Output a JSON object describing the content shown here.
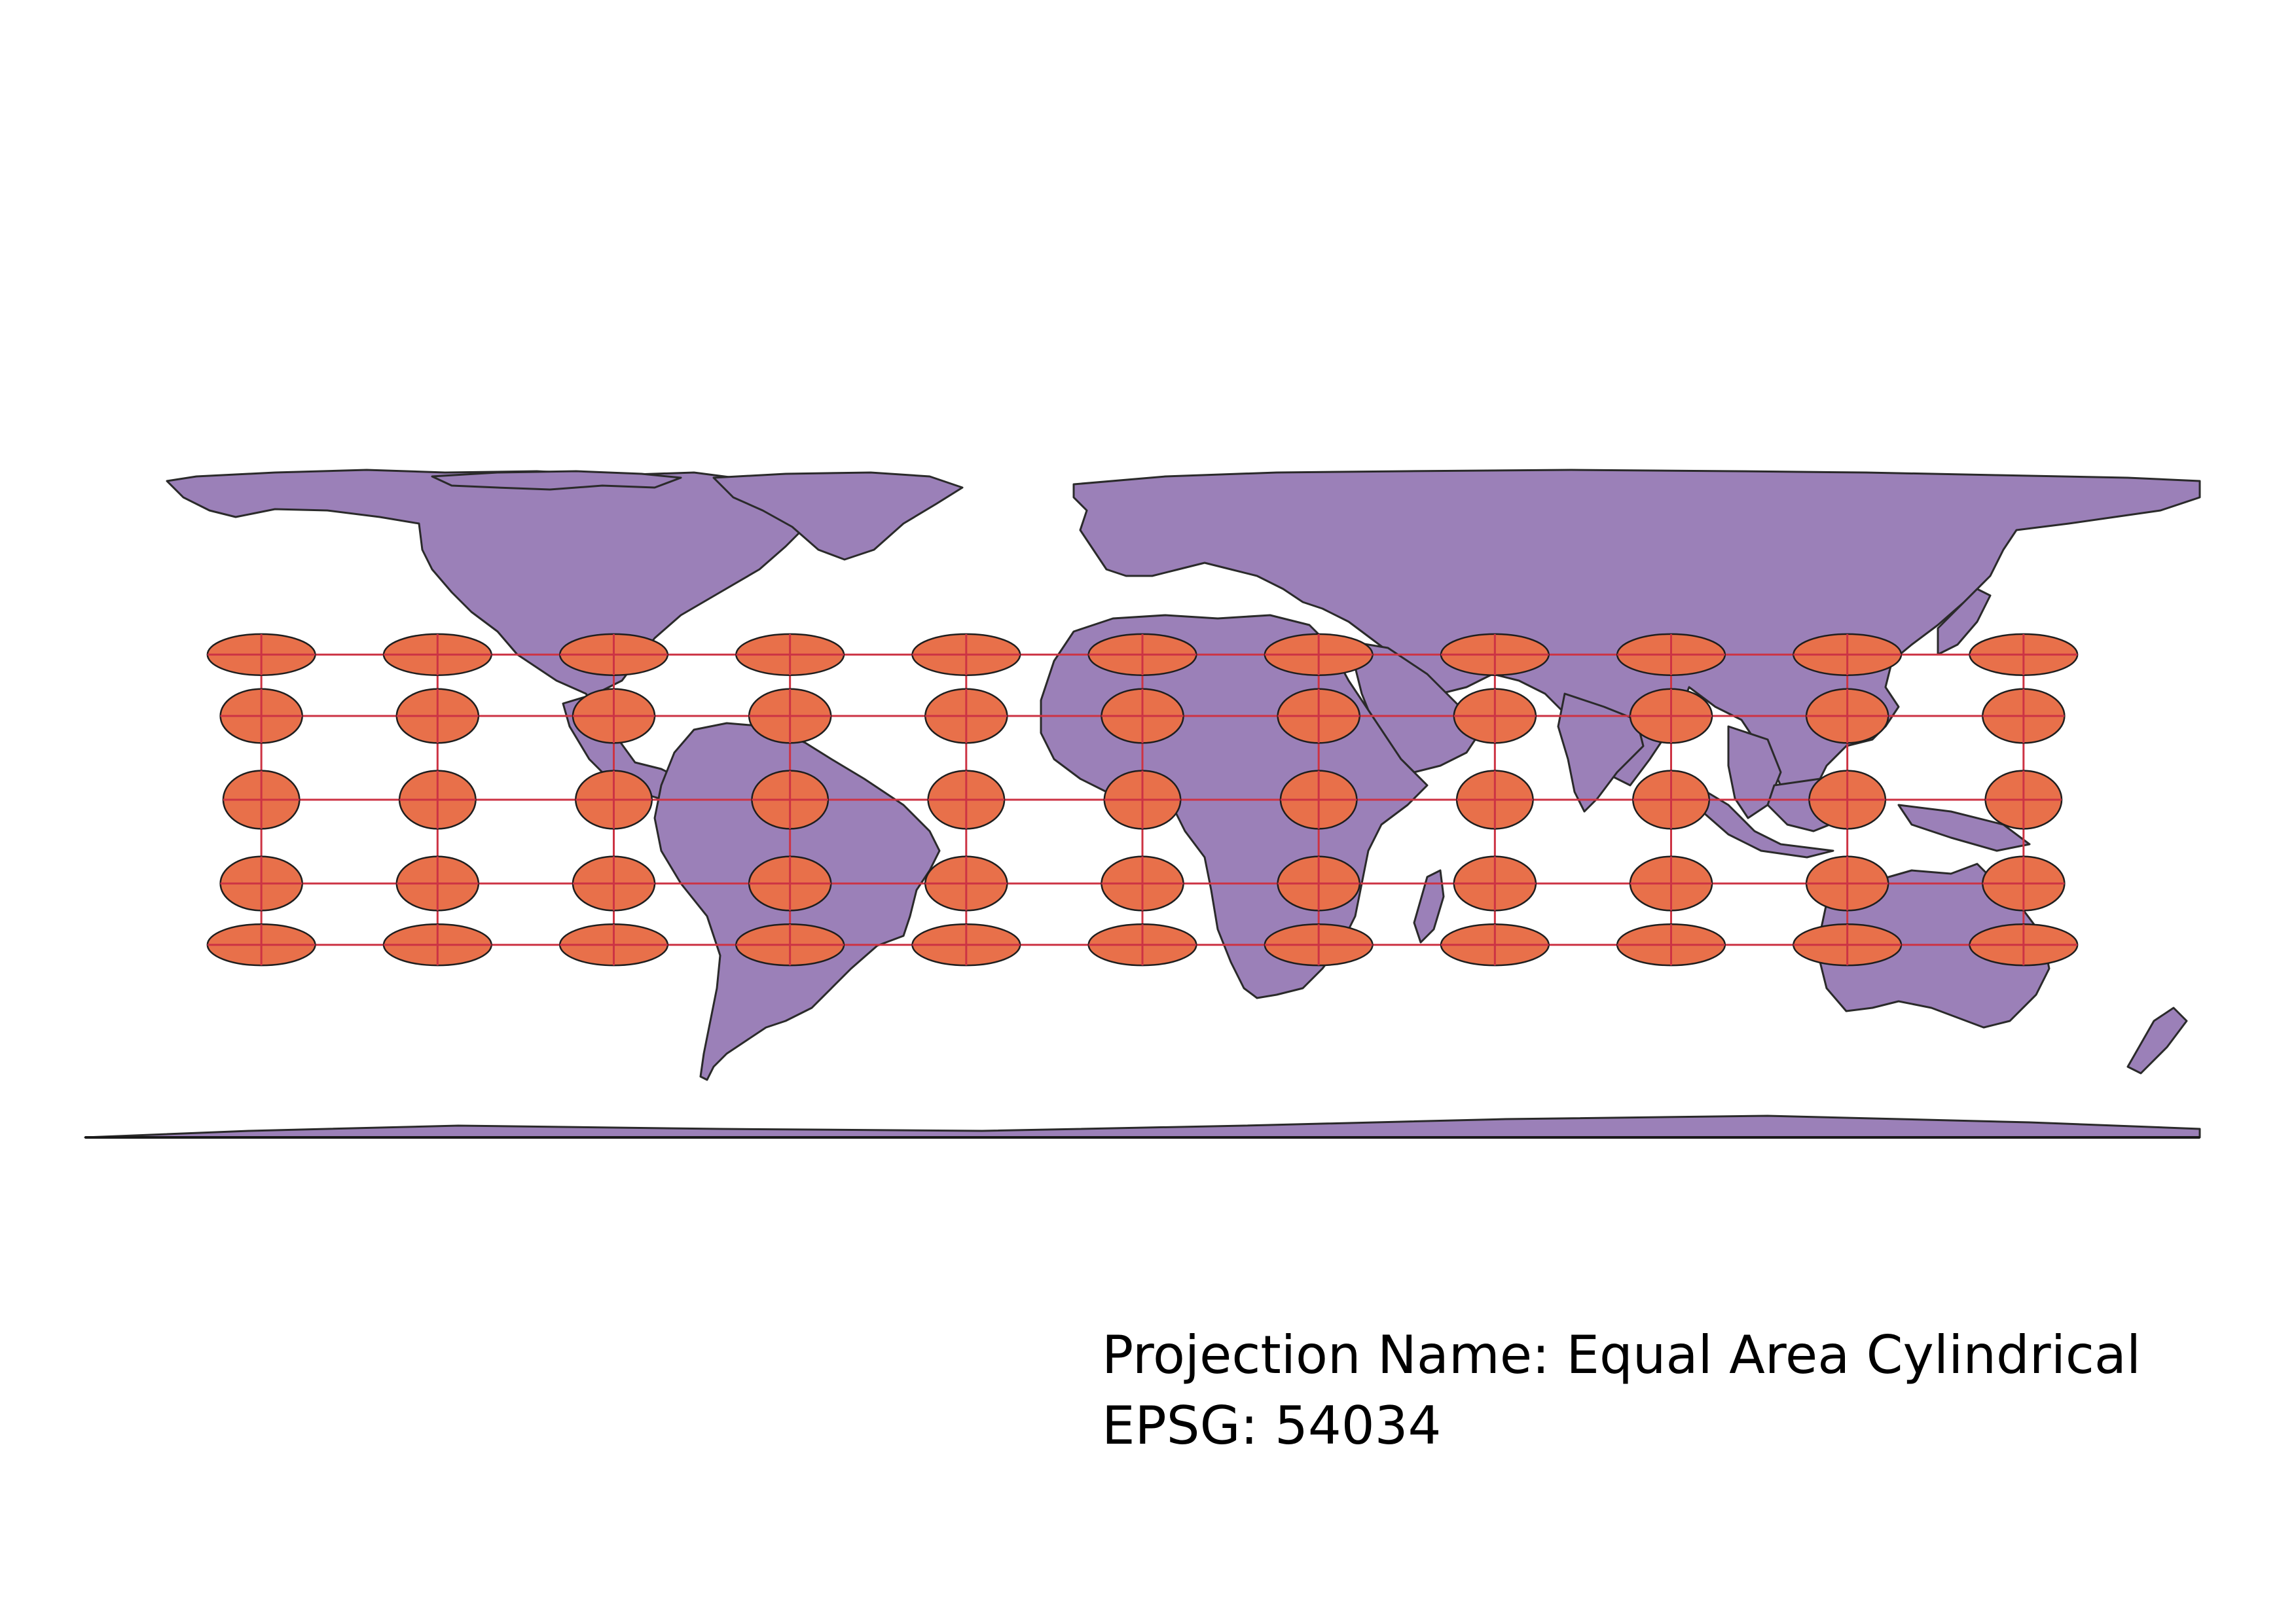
{
  "map": {
    "ocean_color": "#ffffff",
    "land_color": "#9b80b8",
    "land_outline_color": "#2a2a2a",
    "graticule_color": "#cc3344",
    "tissot_color": "#e8704a",
    "tissot_outline_color": "#1e1e1e",
    "graticule_meridians_deg": [
      -150,
      -120,
      -90,
      -60,
      -30,
      0,
      30,
      60,
      90,
      120,
      150
    ],
    "graticule_parallels_deg": [
      60,
      30,
      0,
      -30,
      -60
    ]
  },
  "caption": {
    "projection_line": "Projection Name: Equal Area Cylindrical",
    "epsg_line": "EPSG: 54034"
  }
}
